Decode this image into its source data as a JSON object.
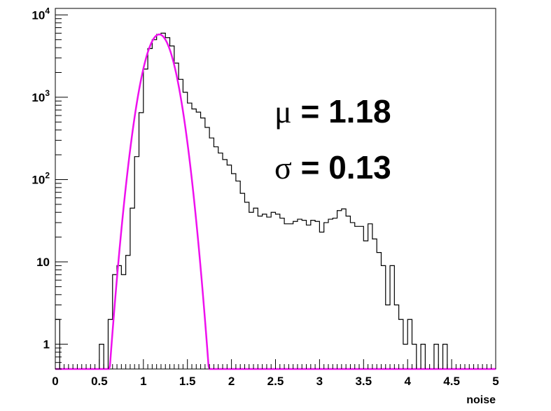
{
  "chart_data": {
    "type": "histogram",
    "xlabel": "noise",
    "ylabel": "",
    "xlim": [
      0,
      5
    ],
    "ylim": [
      0.5,
      12000
    ],
    "y_scale": "log",
    "grid": false,
    "legend": "none",
    "bin_width": 0.05,
    "x_ticks": [
      "0",
      "0.5",
      "1",
      "1.5",
      "2",
      "2.5",
      "3",
      "3.5",
      "4",
      "4.5",
      "5"
    ],
    "y_ticks": [
      {
        "value": 1,
        "base": "1",
        "exp": ""
      },
      {
        "value": 10,
        "base": "10",
        "exp": ""
      },
      {
        "value": 100,
        "base": "10",
        "exp": "2"
      },
      {
        "value": 1000,
        "base": "10",
        "exp": "3"
      },
      {
        "value": 10000,
        "base": "10",
        "exp": "4"
      }
    ],
    "series": [
      {
        "kind": "histogram",
        "color": "#000000",
        "values": [
          2,
          0,
          0,
          0,
          0,
          0,
          0,
          0,
          0,
          0,
          1,
          0,
          2,
          7,
          9,
          7,
          12,
          45,
          190,
          650,
          2200,
          3900,
          5000,
          5800,
          6000,
          5300,
          4200,
          2600,
          1650,
          1150,
          850,
          720,
          660,
          560,
          430,
          320,
          250,
          210,
          175,
          150,
          118,
          96,
          68,
          53,
          40,
          45,
          36,
          38,
          35,
          40,
          38,
          34,
          29,
          29,
          31,
          33,
          32,
          28,
          32,
          31,
          23,
          30,
          33,
          34,
          42,
          44,
          36,
          30,
          27,
          27,
          18,
          29,
          19,
          13,
          9,
          3,
          9,
          3,
          2,
          1,
          2,
          1,
          0,
          1,
          0,
          0,
          1,
          0,
          1,
          0,
          0,
          0,
          0,
          0,
          0,
          0,
          0,
          0,
          0,
          0
        ]
      },
      {
        "kind": "gaussian-fit",
        "color": "#ee10ee",
        "amplitude": 5800,
        "mean": 1.18,
        "sigma": 0.13
      }
    ],
    "annotations": [
      {
        "symbol": "μ",
        "text": " = 1.18"
      },
      {
        "symbol": "σ",
        "text": " = 0.13"
      }
    ]
  }
}
